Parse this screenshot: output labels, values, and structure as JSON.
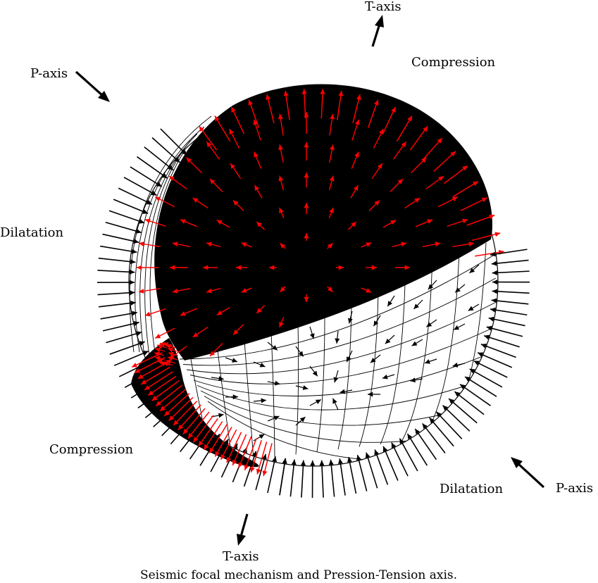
{
  "caption": "Seismic focal mechanism and Pression-Tension axis.",
  "labels": {
    "t_axis_top": "T-axis",
    "t_axis_bottom": "T-axis",
    "p_axis_left": "P-axis",
    "p_axis_right": "P-axis",
    "compression_top": "Compression",
    "compression_bottom": "Compression",
    "dilatation_left": "Dilatation",
    "dilatation_right": "Dilatation"
  },
  "colors": {
    "compression_arrow": "#ff0000",
    "dilatation_arrow": "#000000",
    "compression_region": "#000000",
    "dilatation_region": "#ffffff",
    "background": "#ffffff"
  },
  "arrow_color_legend": {
    "red": "Compression",
    "black": "Dilatation"
  }
}
